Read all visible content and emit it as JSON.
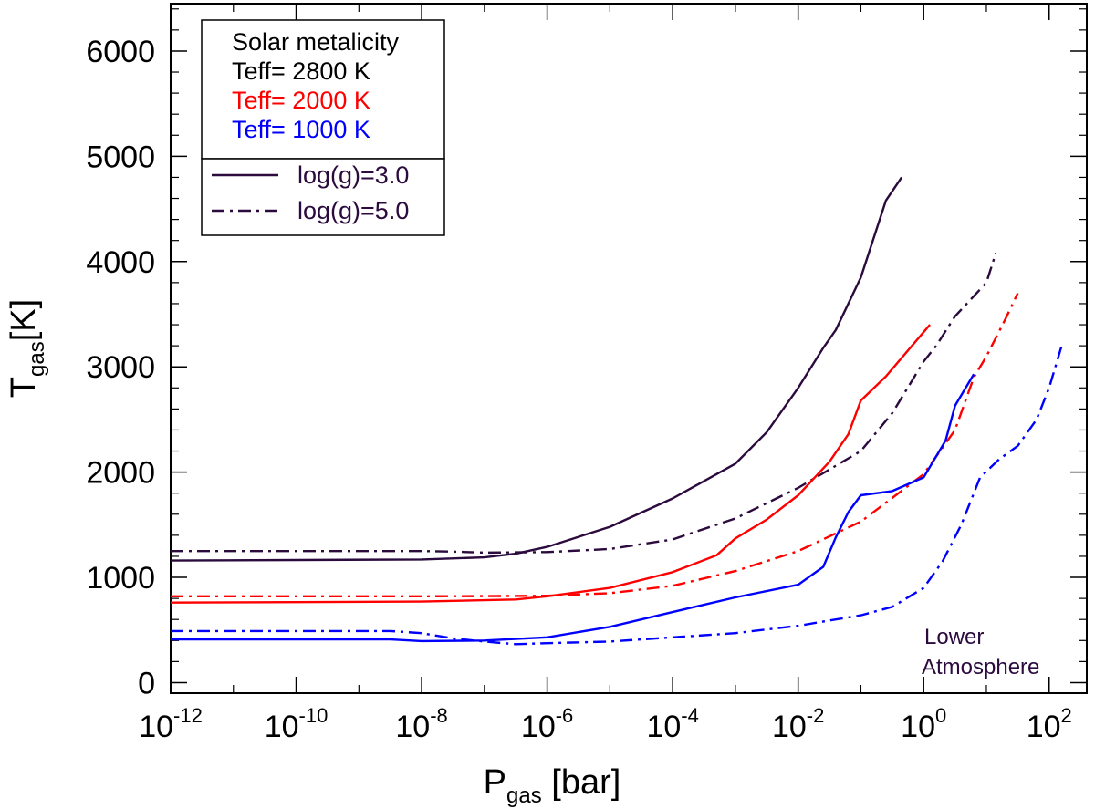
{
  "chart_data": {
    "type": "line",
    "xscale": "log",
    "xlim_log10": [
      -12,
      2.6
    ],
    "ylim": [
      -100,
      6450
    ],
    "xlabel": {
      "main": "P",
      "sub": "gas",
      "rest": " [bar]"
    },
    "ylabel": {
      "main": "T",
      "sub": "gas",
      "rest": "[K]"
    },
    "xticks": [
      {
        "base": "10",
        "exp": "-12",
        "log10": -12
      },
      {
        "base": "10",
        "exp": "-10",
        "log10": -10
      },
      {
        "base": "10",
        "exp": "-8",
        "log10": -8
      },
      {
        "base": "10",
        "exp": "-6",
        "log10": -6
      },
      {
        "base": "10",
        "exp": "-4",
        "log10": -4
      },
      {
        "base": "10",
        "exp": "-2",
        "log10": -2
      },
      {
        "base": "10",
        "exp": "0",
        "log10": 0
      },
      {
        "base": "10",
        "exp": "2",
        "log10": 2
      }
    ],
    "yticks": [
      {
        "label": "0",
        "value": 0
      },
      {
        "label": "1000",
        "value": 1000
      },
      {
        "label": "2000",
        "value": 2000
      },
      {
        "label": "3000",
        "value": 3000
      },
      {
        "label": "4000",
        "value": 4000
      },
      {
        "label": "5000",
        "value": 5000
      },
      {
        "label": "6000",
        "value": 6000
      }
    ],
    "series": [
      {
        "name": "Teff=2800 K, log(g)=3.0",
        "color": "#2b0a3d",
        "dash": "solid",
        "points": [
          [
            -12,
            1160
          ],
          [
            -10,
            1165
          ],
          [
            -8,
            1170
          ],
          [
            -7,
            1190
          ],
          [
            -6.5,
            1225
          ],
          [
            -6,
            1290
          ],
          [
            -5,
            1480
          ],
          [
            -4,
            1750
          ],
          [
            -3,
            2080
          ],
          [
            -2.5,
            2380
          ],
          [
            -2,
            2800
          ],
          [
            -1.6,
            3180
          ],
          [
            -1.4,
            3350
          ],
          [
            -1,
            3850
          ],
          [
            -0.6,
            4580
          ],
          [
            -0.35,
            4800
          ]
        ]
      },
      {
        "name": "Teff=2800 K, log(g)=5.0",
        "color": "#2b0a3d",
        "dash": "dashdot",
        "points": [
          [
            -12,
            1250
          ],
          [
            -10,
            1250
          ],
          [
            -8,
            1250
          ],
          [
            -7.5,
            1245
          ],
          [
            -7,
            1235
          ],
          [
            -6,
            1240
          ],
          [
            -5,
            1270
          ],
          [
            -4,
            1360
          ],
          [
            -3,
            1560
          ],
          [
            -2,
            1850
          ],
          [
            -1,
            2200
          ],
          [
            -0.5,
            2560
          ],
          [
            0,
            3050
          ],
          [
            0.2,
            3200
          ],
          [
            0.5,
            3480
          ],
          [
            1,
            3800
          ],
          [
            1.15,
            4080
          ]
        ]
      },
      {
        "name": "Teff=2000 K, log(g)=3.0",
        "color": "#ff0000",
        "dash": "solid",
        "points": [
          [
            -12,
            760
          ],
          [
            -10,
            765
          ],
          [
            -8,
            770
          ],
          [
            -6.5,
            790
          ],
          [
            -6,
            820
          ],
          [
            -5,
            900
          ],
          [
            -4,
            1050
          ],
          [
            -3.3,
            1210
          ],
          [
            -3,
            1370
          ],
          [
            -2.5,
            1550
          ],
          [
            -2,
            1780
          ],
          [
            -1.5,
            2100
          ],
          [
            -1.2,
            2360
          ],
          [
            -1,
            2680
          ],
          [
            -0.6,
            2910
          ],
          [
            0.1,
            3400
          ]
        ]
      },
      {
        "name": "Teff=2000 K, log(g)=5.0",
        "color": "#ff0000",
        "dash": "dashdot",
        "points": [
          [
            -12,
            820
          ],
          [
            -10,
            820
          ],
          [
            -8,
            820
          ],
          [
            -7,
            822
          ],
          [
            -6,
            825
          ],
          [
            -5,
            850
          ],
          [
            -4,
            920
          ],
          [
            -3,
            1060
          ],
          [
            -2,
            1250
          ],
          [
            -1,
            1530
          ],
          [
            0,
            1980
          ],
          [
            0.5,
            2400
          ],
          [
            0.8,
            2900
          ],
          [
            1,
            3100
          ],
          [
            1.3,
            3450
          ],
          [
            1.5,
            3700
          ]
        ]
      },
      {
        "name": "Teff=1000 K, log(g)=3.0",
        "color": "#0000ff",
        "dash": "solid",
        "points": [
          [
            -12,
            410
          ],
          [
            -10,
            410
          ],
          [
            -8.5,
            410
          ],
          [
            -8,
            395
          ],
          [
            -7,
            400
          ],
          [
            -6,
            430
          ],
          [
            -5,
            530
          ],
          [
            -4,
            670
          ],
          [
            -3,
            810
          ],
          [
            -2,
            930
          ],
          [
            -1.6,
            1100
          ],
          [
            -1.4,
            1380
          ],
          [
            -1.2,
            1620
          ],
          [
            -1,
            1780
          ],
          [
            -0.5,
            1820
          ],
          [
            0,
            1950
          ],
          [
            0.35,
            2300
          ],
          [
            0.5,
            2630
          ],
          [
            0.8,
            2930
          ]
        ]
      },
      {
        "name": "Teff=1000 K, log(g)=5.0",
        "color": "#0000ff",
        "dash": "dashdot",
        "points": [
          [
            -12,
            490
          ],
          [
            -10,
            490
          ],
          [
            -8.5,
            490
          ],
          [
            -8,
            470
          ],
          [
            -7.5,
            420
          ],
          [
            -7,
            390
          ],
          [
            -6.5,
            365
          ],
          [
            -6,
            375
          ],
          [
            -5,
            390
          ],
          [
            -4,
            430
          ],
          [
            -3,
            470
          ],
          [
            -2,
            540
          ],
          [
            -1,
            640
          ],
          [
            -0.5,
            720
          ],
          [
            0,
            900
          ],
          [
            0.3,
            1150
          ],
          [
            0.6,
            1500
          ],
          [
            0.9,
            1950
          ],
          [
            1.2,
            2120
          ],
          [
            1.5,
            2250
          ],
          [
            1.8,
            2500
          ],
          [
            2,
            2800
          ],
          [
            2.2,
            3200
          ]
        ]
      }
    ],
    "legend": {
      "position": "top-left",
      "header": {
        "text": "Solar metalicity",
        "color": "#000000"
      },
      "teff_entries": [
        {
          "text": "Teff= 2800 K",
          "color": "#000000"
        },
        {
          "text": "Teff= 2000 K",
          "color": "#ff0000"
        },
        {
          "text": "Teff= 1000 K",
          "color": "#0000ff"
        }
      ],
      "style_entries": [
        {
          "text": "log(g)=3.0",
          "dash": "solid",
          "color": "#2b0a3d"
        },
        {
          "text": "log(g)=5.0",
          "dash": "dashdot",
          "color": "#2b0a3d"
        }
      ]
    },
    "annotation": {
      "lines": [
        "Lower",
        "Atmosphere"
      ],
      "color": "#2b0a3d",
      "position": "bottom-right"
    }
  }
}
